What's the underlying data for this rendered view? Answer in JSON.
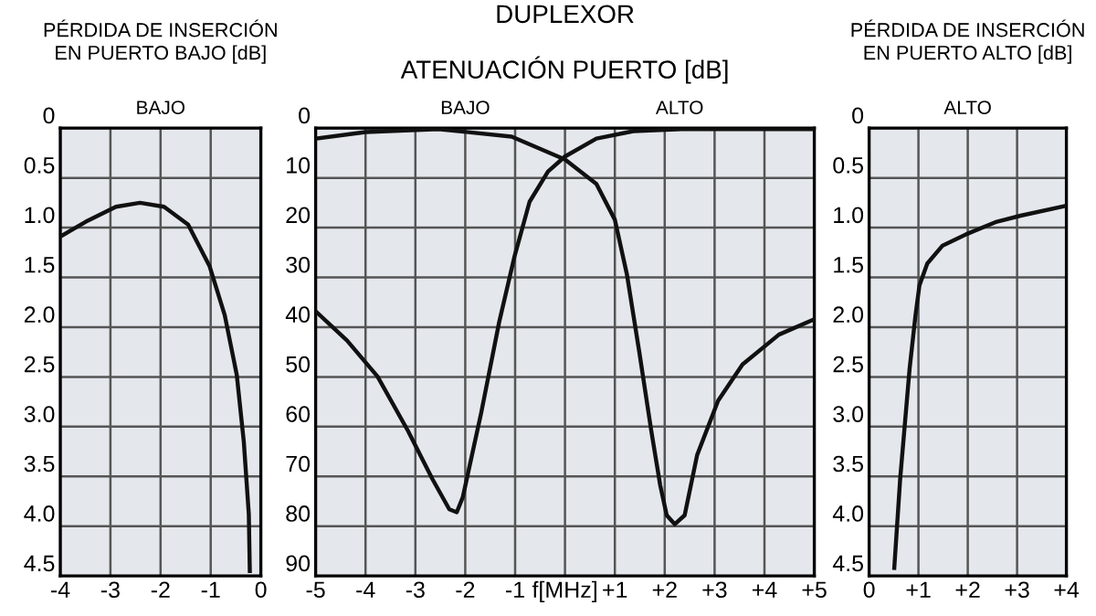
{
  "chart_data": [
    {
      "type": "line",
      "title": "PÉRDIDA DE INSERCIÓN\nEN PUERTO BAJO [dB]",
      "xlim": [
        -4,
        0
      ],
      "xticks": [
        -4,
        -3,
        -2,
        -1,
        0
      ],
      "ylim": [
        4.5,
        0
      ],
      "yticks": [
        0,
        0.5,
        {
          "value": 1,
          "label": "1.0"
        },
        1.5,
        {
          "value": 2,
          "label": "2.0"
        },
        2.5,
        {
          "value": 3,
          "label": "3.0"
        },
        3.5,
        {
          "value": 4,
          "label": "4.0"
        },
        4.5
      ],
      "grid": true,
      "annotations": [
        "BAJO"
      ],
      "series": [
        {
          "color": "#111111",
          "x": [
            -4,
            -3.49,
            -2.89,
            -2.41,
            -1.93,
            -1.45,
            -1.02,
            -0.72,
            -0.48,
            -0.34,
            -0.24,
            -0.22
          ],
          "values": [
            1.09,
            0.94,
            0.79,
            0.75,
            0.79,
            0.97,
            1.39,
            1.88,
            2.48,
            3.15,
            3.88,
            4.45
          ]
        }
      ]
    },
    {
      "type": "line",
      "title": "DUPLEXOR",
      "subtitle": "ATENUACIÓN PUERTO [dB]",
      "xlim": [
        -5,
        5
      ],
      "xticks": [
        -5,
        -4,
        -3,
        -2,
        -1,
        {
          "value": 0,
          "label": "f[MHz]"
        },
        {
          "value": 1,
          "label": "+1"
        },
        {
          "value": 2,
          "label": "+2"
        },
        {
          "value": 3,
          "label": "+3"
        },
        {
          "value": 4,
          "label": "+4"
        },
        {
          "value": 5,
          "label": "+5"
        }
      ],
      "ylim": [
        90,
        0
      ],
      "yticks": [
        0,
        10,
        20,
        30,
        40,
        50,
        60,
        70,
        80,
        90
      ],
      "grid": true,
      "annotations": [
        {
          "text": "BAJO",
          "x": -2,
          "y": 0
        },
        {
          "text": "ALTO",
          "x": 2.3,
          "y": 0
        }
      ],
      "series": [
        {
          "color": "#111111",
          "x": [
            -5,
            -4,
            -2.54,
            -1.07,
            0,
            0.63,
            1,
            1.24,
            1.49,
            1.73,
            1.91,
            2.04,
            2.2,
            2.4,
            2.65,
            3.07,
            3.56,
            4.29,
            5
          ],
          "values": [
            2.1,
            0.8,
            0.2,
            1.7,
            6.3,
            11.2,
            18.4,
            29.3,
            45,
            60.8,
            71.8,
            77.8,
            79.6,
            77.8,
            65.7,
            54.8,
            47.5,
            41.5,
            38.4
          ]
        },
        {
          "color": "#111111",
          "x": [
            -5,
            -4.37,
            -3.76,
            -3.15,
            -2.66,
            -2.32,
            -2.17,
            -2.05,
            -1.68,
            -1.32,
            -1.01,
            -0.71,
            -0.34,
            0,
            0.63,
            1.37,
            2.34,
            5
          ],
          "values": [
            36.8,
            42.7,
            49.9,
            60.8,
            70.5,
            76.6,
            77.2,
            74.2,
            57.2,
            39,
            25.7,
            14.8,
            8.7,
            5.7,
            2.1,
            0.6,
            0.2,
            0.2
          ]
        }
      ]
    },
    {
      "type": "line",
      "title": "PÉRDIDA DE INSERCIÓN\nEN PUERTO ALTO [dB]",
      "xlim": [
        0,
        4
      ],
      "xticks": [
        0,
        {
          "value": 1,
          "label": "+1"
        },
        {
          "value": 2,
          "label": "+2"
        },
        {
          "value": 3,
          "label": "+3"
        },
        {
          "value": 4,
          "label": "+4"
        }
      ],
      "ylim": [
        4.5,
        0
      ],
      "yticks": [
        0,
        0.5,
        {
          "value": 1,
          "label": "1.0"
        },
        1.5,
        {
          "value": 2,
          "label": "2.0"
        },
        2.5,
        {
          "value": 3,
          "label": "3.0"
        },
        3.5,
        {
          "value": 4,
          "label": "4.0"
        },
        4.5
      ],
      "grid": true,
      "annotations": [
        "ALTO"
      ],
      "series": [
        {
          "color": "#111111",
          "x": [
            0.51,
            0.63,
            0.82,
            0.94,
            1.02,
            1.18,
            1.49,
            2.0,
            2.59,
            3.07,
            4.0
          ],
          "values": [
            4.42,
            3.52,
            2.42,
            1.88,
            1.58,
            1.36,
            1.18,
            1.06,
            0.94,
            0.88,
            0.78
          ]
        }
      ]
    }
  ]
}
